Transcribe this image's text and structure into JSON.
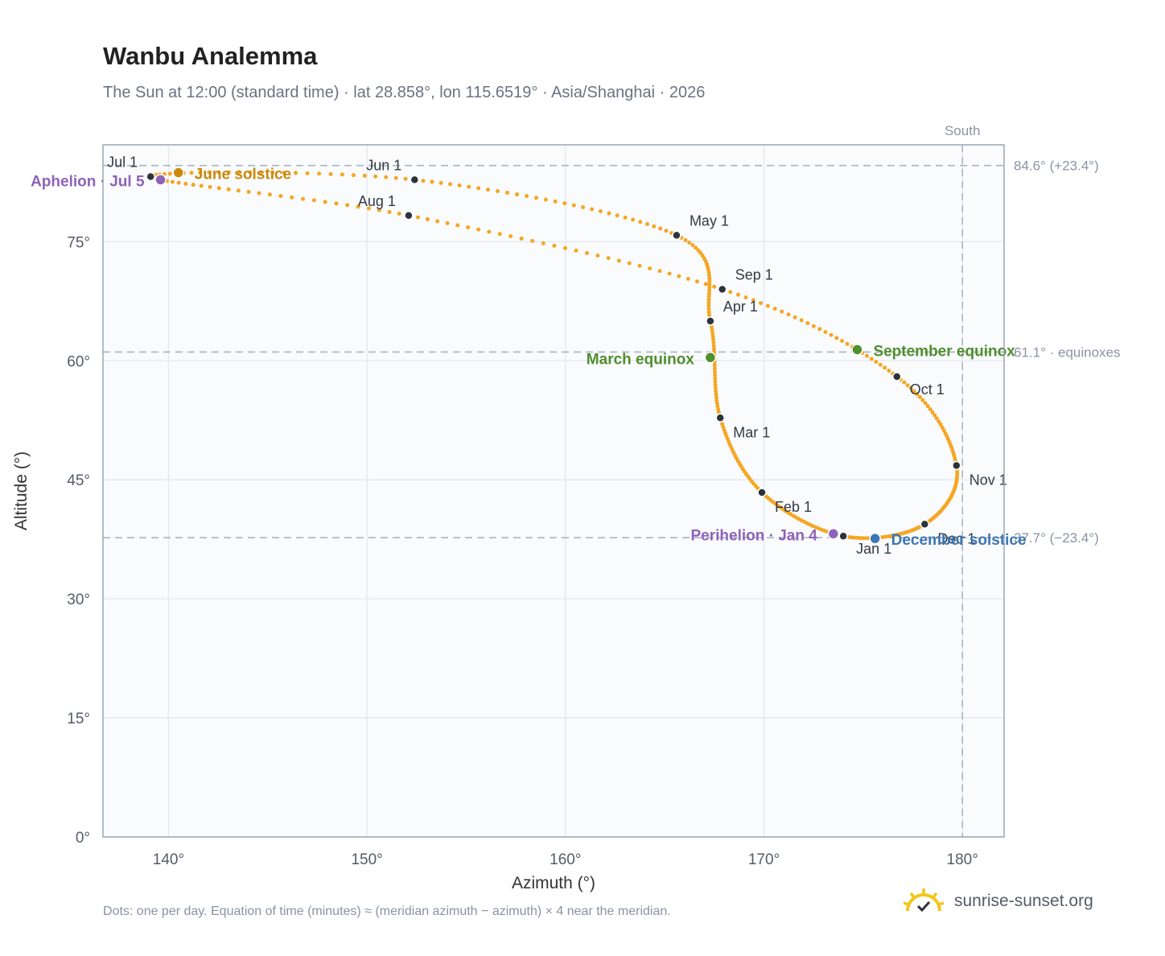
{
  "header": {
    "title": "Wanbu Analemma",
    "subtitle": "The Sun at 12:00 (standard time) · lat 28.858°, lon 115.6519° · Asia/Shanghai · 2026"
  },
  "footer": {
    "note": "Dots: one per day. Equation of time (minutes) ≈ (meridian azimuth − azimuth) × 4 near the meridian.",
    "brand": "sunrise-sunset.org"
  },
  "colors": {
    "path": "#f5a623",
    "month_marker": "#2d333b",
    "solstice": "#c98a0c",
    "equinox": "#4f8f2e",
    "aphelion_perihelion": "#8e63b8",
    "december_solstice": "#3d76b5",
    "grid": "#e3e8ee",
    "plot_bg": "#f9fbfd",
    "reference_line": "#aab4c0"
  },
  "chart_data": {
    "type": "scatter",
    "title": "Wanbu Analemma",
    "xlabel": "Azimuth (°)",
    "ylabel": "Altitude (°)",
    "xlim": [
      136.7,
      182.1
    ],
    "ylim": [
      0,
      87.2
    ],
    "x_ticks": [
      140,
      150,
      160,
      170,
      180
    ],
    "x_tick_labels": [
      "140°",
      "150°",
      "160°",
      "170°",
      "180°"
    ],
    "y_ticks": [
      0,
      15,
      30,
      45,
      60,
      75
    ],
    "y_tick_labels": [
      "0°",
      "15°",
      "30°",
      "45°",
      "60°",
      "75°"
    ],
    "grid": true,
    "meridian": {
      "azimuth": 180,
      "label": "South"
    },
    "reference_lines": [
      {
        "altitude": 84.6,
        "label": "84.6° (+23.4°)"
      },
      {
        "altitude": 61.1,
        "label": "61.1° · equinoxes"
      },
      {
        "altitude": 37.7,
        "label": "37.7° (−23.4°)"
      }
    ],
    "path_keypoints": [
      {
        "label": "Jan 1",
        "azimuth": 174.0,
        "altitude": 37.9
      },
      {
        "label": "Feb 1",
        "azimuth": 169.9,
        "altitude": 43.4
      },
      {
        "label": "Mar 1",
        "azimuth": 167.8,
        "altitude": 52.8
      },
      {
        "label": "Apr 1",
        "azimuth": 167.3,
        "altitude": 65.0
      },
      {
        "label": "May 1",
        "azimuth": 165.6,
        "altitude": 75.8
      },
      {
        "label": "Jun 1",
        "azimuth": 152.4,
        "altitude": 82.8
      },
      {
        "label": "Jul 1",
        "azimuth": 139.1,
        "altitude": 83.2
      },
      {
        "label": "Aug 1",
        "azimuth": 152.1,
        "altitude": 78.3
      },
      {
        "label": "Sep 1",
        "azimuth": 167.9,
        "altitude": 69.0
      },
      {
        "label": "Oct 1",
        "azimuth": 176.7,
        "altitude": 58.0
      },
      {
        "label": "Nov 1",
        "azimuth": 179.7,
        "altitude": 46.8
      },
      {
        "label": "Dec 1",
        "azimuth": 178.1,
        "altitude": 39.4
      }
    ],
    "events": [
      {
        "label": "June solstice",
        "azimuth": 140.5,
        "altitude": 83.7,
        "kind": "solstice"
      },
      {
        "label": "Aphelion · Jul 5",
        "azimuth": 139.6,
        "altitude": 82.8,
        "kind": "aphelion"
      },
      {
        "label": "March equinox",
        "azimuth": 167.3,
        "altitude": 60.4,
        "kind": "equinox"
      },
      {
        "label": "September equinox",
        "azimuth": 174.7,
        "altitude": 61.4,
        "kind": "equinox"
      },
      {
        "label": "Perihelion · Jan 4",
        "azimuth": 173.5,
        "altitude": 38.2,
        "kind": "perihelion"
      },
      {
        "label": "December solstice",
        "azimuth": 175.6,
        "altitude": 37.6,
        "kind": "december_solstice"
      }
    ]
  }
}
